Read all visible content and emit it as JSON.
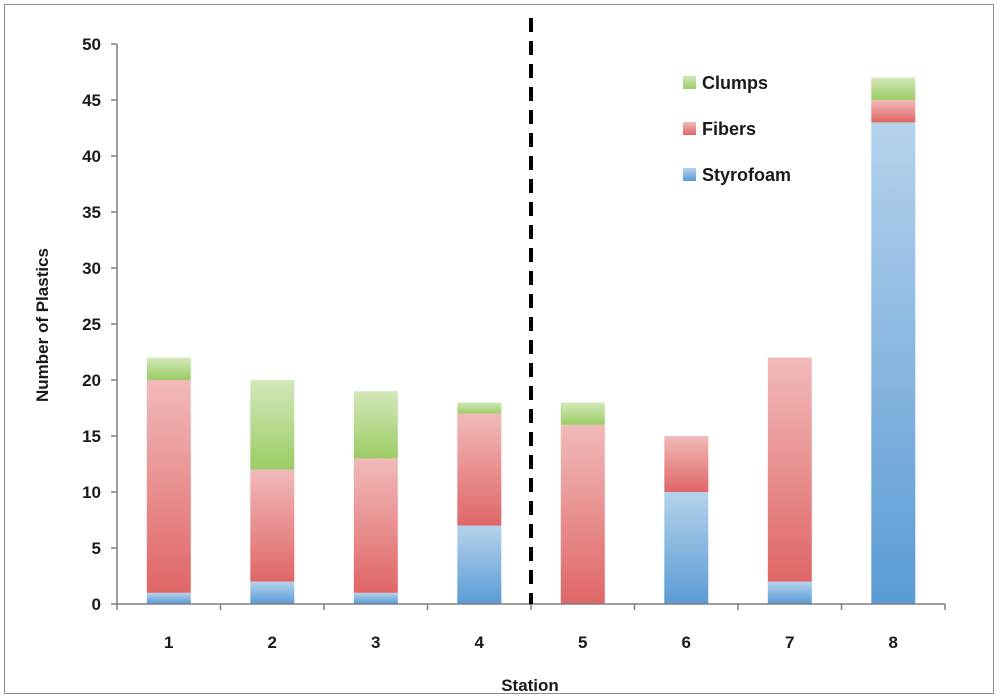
{
  "chart_data": {
    "type": "bar",
    "stacked": true,
    "title": "",
    "xlabel": "Station",
    "ylabel": "Number of Plastics",
    "ylim": [
      0,
      50
    ],
    "yticks": [
      0,
      5,
      10,
      15,
      20,
      25,
      30,
      35,
      40,
      45,
      50
    ],
    "categories": [
      "1",
      "2",
      "3",
      "4",
      "5",
      "6",
      "7",
      "8"
    ],
    "series": [
      {
        "name": "Styrofoam",
        "color": "#5b9bd5",
        "values": [
          1,
          2,
          1,
          7,
          0,
          10,
          2,
          43
        ]
      },
      {
        "name": "Fibers",
        "color": "#e06666",
        "values": [
          19,
          10,
          12,
          10,
          16,
          5,
          20,
          2
        ]
      },
      {
        "name": "Clumps",
        "color": "#9ccc65",
        "values": [
          2,
          8,
          6,
          1,
          2,
          0,
          0,
          2
        ]
      }
    ],
    "divider_after_category": "4",
    "legend_position": "top-right",
    "grid": false
  }
}
